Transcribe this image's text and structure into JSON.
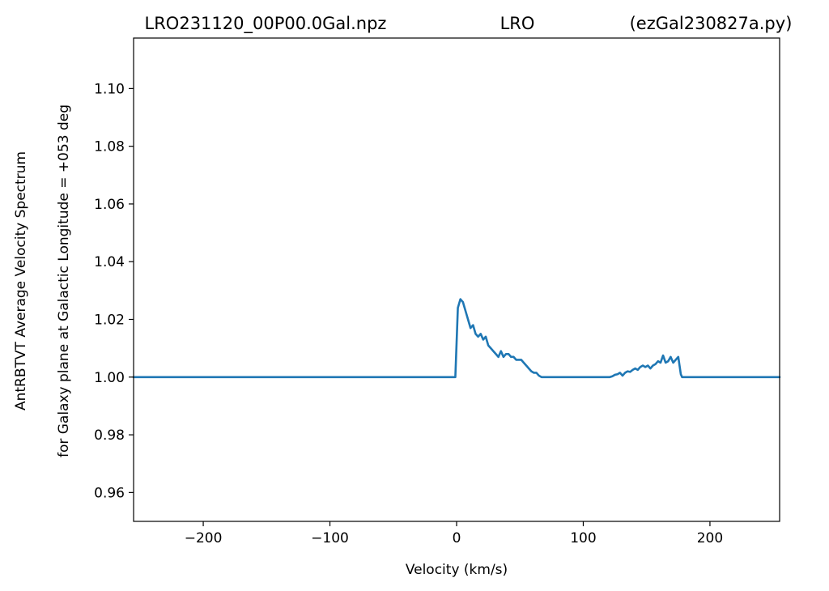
{
  "chart_data": {
    "type": "line",
    "title_left": "LRO231120_00P00.0Gal.npz",
    "title_center": "LRO",
    "title_right": "(ezGal230827a.py)",
    "xlabel": "Velocity (km/s)",
    "ylabel_line1": "AntRBTVT Average Velocity Spectrum",
    "ylabel_line2": "for Galaxy plane at Galactic Longitude = +053 deg",
    "xlim": [
      -255,
      255
    ],
    "ylim": [
      0.95,
      1.1175
    ],
    "xticks": [
      -200,
      -100,
      0,
      100,
      200
    ],
    "xtick_labels": [
      "−200",
      "−100",
      "0",
      "100",
      "200"
    ],
    "yticks": [
      0.96,
      0.98,
      1.0,
      1.02,
      1.04,
      1.06,
      1.08,
      1.1
    ],
    "ytick_labels": [
      "0.96",
      "0.98",
      "1.00",
      "1.02",
      "1.04",
      "1.06",
      "1.08",
      "1.10"
    ],
    "grid": false,
    "series": [
      {
        "color": "#1f77b4",
        "x": [
          -255,
          -1,
          0,
          1,
          3,
          5,
          7,
          9,
          11,
          13,
          15,
          17,
          19,
          21,
          23,
          25,
          27,
          29,
          31,
          33,
          35,
          37,
          39,
          41,
          43,
          45,
          47,
          49,
          51,
          53,
          55,
          57,
          59,
          61,
          63,
          65,
          67,
          69,
          71,
          121,
          123,
          125,
          127,
          129,
          131,
          133,
          135,
          137,
          139,
          141,
          143,
          145,
          147,
          149,
          151,
          153,
          155,
          157,
          159,
          161,
          163,
          165,
          167,
          169,
          171,
          173,
          175,
          177,
          178,
          179,
          255
        ],
        "y": [
          1.0,
          1.0,
          1.012,
          1.024,
          1.027,
          1.026,
          1.023,
          1.02,
          1.017,
          1.018,
          1.015,
          1.014,
          1.015,
          1.013,
          1.014,
          1.011,
          1.01,
          1.009,
          1.008,
          1.007,
          1.009,
          1.007,
          1.008,
          1.008,
          1.007,
          1.007,
          1.006,
          1.006,
          1.006,
          1.005,
          1.004,
          1.003,
          1.002,
          1.0015,
          1.0015,
          1.0005,
          1.0,
          1.0,
          1.0,
          1.0,
          1.0003,
          1.0008,
          1.001,
          1.0015,
          1.0005,
          1.0015,
          1.002,
          1.0018,
          1.0025,
          1.003,
          1.0025,
          1.0035,
          1.004,
          1.0035,
          1.004,
          1.003,
          1.004,
          1.0045,
          1.0055,
          1.005,
          1.0075,
          1.005,
          1.0055,
          1.007,
          1.005,
          1.006,
          1.007,
          1.001,
          1.0,
          1.0,
          1.0
        ]
      }
    ]
  }
}
